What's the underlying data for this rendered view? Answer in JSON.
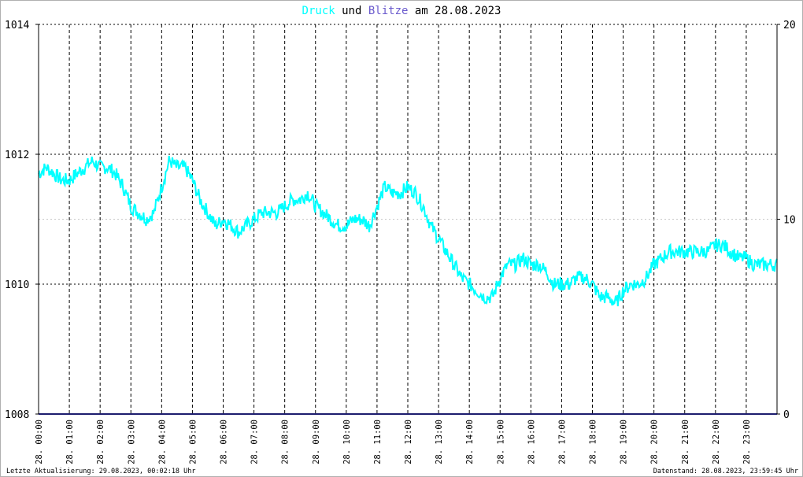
{
  "title": {
    "part1": "Druck",
    "part2": " und ",
    "part3": "Blitze",
    "part4": " am 28.08.2023",
    "color1": "#00ffff",
    "color2": "#000000",
    "color3": "#6a5acd",
    "color4": "#000000"
  },
  "footer": {
    "left": "Letzte Aktualisierung: 29.08.2023, 00:02:18 Uhr",
    "right": "Datenstand: 28.08.2023, 23:59:45 Uhr"
  },
  "colors": {
    "pressure": "#00ffff",
    "lightning": "#1c1c6e",
    "grid": "#000000",
    "axis": "#000000"
  },
  "chart_data": {
    "type": "line",
    "title": "Druck und Blitze am 28.08.2023",
    "grid": true,
    "y_left": {
      "ticks": [
        "1014",
        "1012",
        "1010",
        "1008"
      ],
      "ylim": [
        1008,
        1014
      ]
    },
    "y_right": {
      "ticks": [
        "20",
        "10",
        "0"
      ],
      "ylim": [
        0,
        20
      ]
    },
    "x": {
      "xlim": [
        0,
        24
      ],
      "unit": "hour",
      "ticks": [
        "28. 00:00",
        "28. 01:00",
        "28. 02:00",
        "28. 03:00",
        "28. 04:00",
        "28. 05:00",
        "28. 06:00",
        "28. 07:00",
        "28. 08:00",
        "28. 09:00",
        "28. 10:00",
        "28. 11:00",
        "28. 12:00",
        "28. 13:00",
        "28. 14:00",
        "28. 15:00",
        "28. 16:00",
        "28. 17:00",
        "28. 18:00",
        "28. 19:00",
        "28. 20:00",
        "28. 21:00",
        "28. 22:00",
        "28. 23:00"
      ]
    },
    "series": [
      {
        "name": "Druck",
        "axis": "left",
        "x": [
          0,
          0.25,
          0.5,
          0.75,
          1,
          1.25,
          1.5,
          1.75,
          2,
          2.25,
          2.5,
          2.75,
          3,
          3.25,
          3.5,
          3.75,
          4,
          4.25,
          4.5,
          4.75,
          5,
          5.25,
          5.5,
          5.75,
          6,
          6.25,
          6.5,
          6.75,
          7,
          7.25,
          7.5,
          7.75,
          8,
          8.25,
          8.5,
          8.75,
          9,
          9.25,
          9.5,
          9.75,
          10,
          10.25,
          10.5,
          10.75,
          11,
          11.25,
          11.5,
          11.75,
          12,
          12.25,
          12.5,
          12.75,
          13,
          13.25,
          13.5,
          13.75,
          14,
          14.25,
          14.5,
          14.75,
          15,
          15.25,
          15.5,
          15.75,
          16,
          16.25,
          16.5,
          16.75,
          17,
          17.25,
          17.5,
          17.75,
          18,
          18.25,
          18.5,
          18.75,
          19,
          19.25,
          19.5,
          19.75,
          20,
          20.25,
          20.5,
          20.75,
          21,
          21.25,
          21.5,
          21.75,
          22,
          22.25,
          22.5,
          22.75,
          23,
          23.25,
          23.5,
          23.75,
          24
        ],
        "values": [
          1011.7,
          1011.8,
          1011.7,
          1011.6,
          1011.6,
          1011.7,
          1011.8,
          1011.9,
          1011.8,
          1011.8,
          1011.7,
          1011.5,
          1011.2,
          1011.1,
          1011.0,
          1011.1,
          1011.5,
          1011.9,
          1011.8,
          1011.8,
          1011.6,
          1011.3,
          1011.1,
          1010.9,
          1011.0,
          1010.9,
          1010.8,
          1010.9,
          1011.0,
          1011.1,
          1011.1,
          1011.1,
          1011.2,
          1011.3,
          1011.3,
          1011.4,
          1011.2,
          1011.1,
          1011.0,
          1010.9,
          1010.9,
          1011.0,
          1011.0,
          1010.9,
          1011.2,
          1011.5,
          1011.4,
          1011.4,
          1011.5,
          1011.4,
          1011.2,
          1010.9,
          1010.7,
          1010.5,
          1010.3,
          1010.1,
          1010.0,
          1009.9,
          1009.8,
          1009.8,
          1010.1,
          1010.3,
          1010.3,
          1010.4,
          1010.3,
          1010.3,
          1010.2,
          1010.0,
          1010.0,
          1010.0,
          1010.1,
          1010.1,
          1010.0,
          1009.8,
          1009.8,
          1009.7,
          1009.9,
          1010.0,
          1010.0,
          1010.1,
          1010.3,
          1010.4,
          1010.5,
          1010.5,
          1010.5,
          1010.5,
          1010.5,
          1010.5,
          1010.6,
          1010.6,
          1010.5,
          1010.4,
          1010.4,
          1010.3,
          1010.3,
          1010.3,
          1010.3
        ]
      },
      {
        "name": "Blitze",
        "axis": "right",
        "x": [
          0,
          24
        ],
        "values": [
          0,
          0
        ]
      }
    ]
  }
}
